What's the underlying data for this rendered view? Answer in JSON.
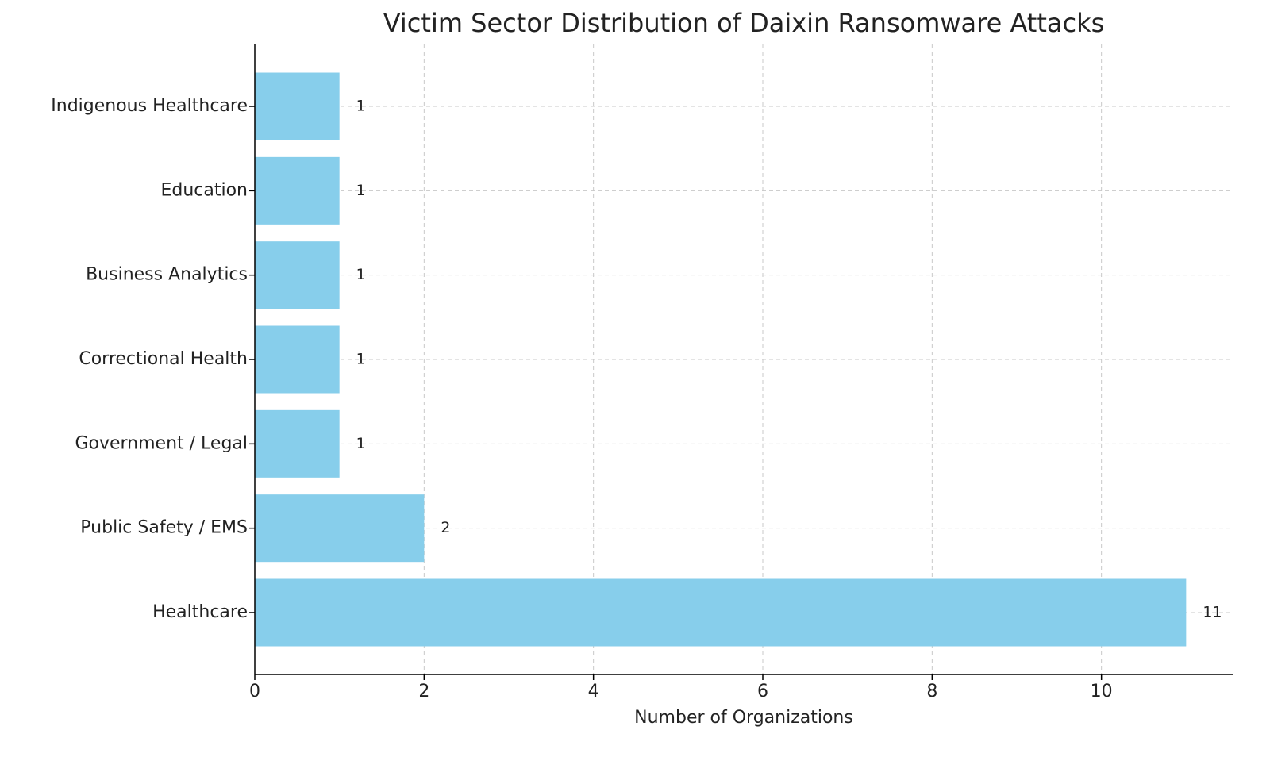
{
  "chart_data": {
    "type": "barh",
    "title": "Victim Sector Distribution of Daixin Ransomware Attacks",
    "xlabel": "Number of Organizations",
    "categories": [
      "Healthcare",
      "Public Safety / EMS",
      "Government / Legal",
      "Correctional Health",
      "Business Analytics",
      "Education",
      "Indigenous Healthcare"
    ],
    "values": [
      11,
      2,
      1,
      1,
      1,
      1,
      1
    ],
    "color": "#87ceeb",
    "xlim": [
      0,
      11.55
    ],
    "xticks": [
      0,
      2,
      4,
      6,
      8,
      10
    ],
    "grid": true
  }
}
